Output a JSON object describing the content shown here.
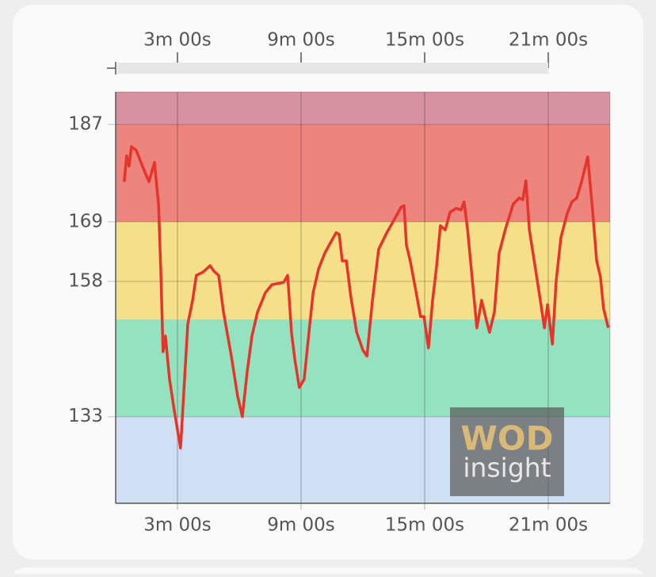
{
  "chart_data": {
    "type": "line",
    "x": [
      25,
      32,
      39,
      46,
      60,
      78,
      97,
      113,
      125,
      132,
      138,
      145,
      157,
      171,
      189,
      198,
      210,
      224,
      235,
      254,
      275,
      286,
      300,
      314,
      337,
      355,
      369,
      383,
      397,
      413,
      436,
      455,
      489,
      501,
      512,
      522,
      535,
      549,
      563,
      575,
      591,
      609,
      628,
      642,
      651,
      660,
      672,
      685,
      702,
      720,
      732,
      748,
      766,
      789,
      812,
      831,
      840,
      847,
      858,
      875,
      888,
      898,
      911,
      923,
      934,
      946,
      960,
      974,
      992,
      1006,
      1015,
      1025,
      1038,
      1052,
      1066,
      1077,
      1089,
      1103,
      1117,
      1135,
      1158,
      1175,
      1186,
      1195,
      1205,
      1221,
      1237,
      1249,
      1258,
      1272,
      1283,
      1297,
      1315,
      1329,
      1343,
      1357,
      1375,
      1389,
      1401,
      1412,
      1421,
      1435
    ],
    "series": [
      {
        "color": "#e5352b",
        "values": [
          176.4,
          181.2,
          179.3,
          182.9,
          182.2,
          179.3,
          176.4,
          180,
          172,
          158.8,
          145,
          147.9,
          139.9,
          134,
          127.2,
          137,
          150.1,
          154.5,
          159.1,
          159.7,
          160.9,
          159.9,
          159.1,
          152.3,
          144.2,
          136.9,
          133,
          141.3,
          147.9,
          152.3,
          155.9,
          157.4,
          157.8,
          159.1,
          148.6,
          143.5,
          138.4,
          139.9,
          148.6,
          155.9,
          160.3,
          163.2,
          165.4,
          167,
          166.7,
          161.8,
          161.8,
          155.2,
          148.6,
          145.3,
          144.2,
          154.5,
          163.9,
          166.9,
          169.5,
          171.7,
          172,
          164.7,
          161.8,
          156,
          151.5,
          151.5,
          145.7,
          154.5,
          160.3,
          168.3,
          167.5,
          170.8,
          171.5,
          171.2,
          172.7,
          167.5,
          158.8,
          149.4,
          154.5,
          151.5,
          148.6,
          152.3,
          163.2,
          167.6,
          172.3,
          173.4,
          173.1,
          176.6,
          167.5,
          161,
          154.5,
          149.4,
          153.7,
          146.4,
          158.1,
          166.1,
          170.5,
          172.7,
          173.4,
          176.4,
          181,
          171.2,
          161.8,
          158.8,
          153,
          149.4
        ]
      }
    ],
    "xlim": [
      0,
      1440
    ],
    "xticks": [
      {
        "value": 180,
        "label": "3m 00s"
      },
      {
        "value": 540,
        "label": "9m 00s"
      },
      {
        "value": 900,
        "label": "15m 00s"
      },
      {
        "value": 1260,
        "label": "21m 00s"
      }
    ],
    "ylim": [
      117,
      193
    ],
    "yticks": [
      133,
      158,
      169,
      187
    ],
    "zones": [
      {
        "from": 187,
        "to": 193,
        "color": "#d692a0"
      },
      {
        "from": 169,
        "to": 187,
        "color": "#ee847e"
      },
      {
        "from": 151,
        "to": 169,
        "color": "#f5df88"
      },
      {
        "from": 133,
        "to": 151,
        "color": "#94e2bf"
      },
      {
        "from": 117,
        "to": 133,
        "color": "#cfe0f5"
      }
    ],
    "watermark": [
      "WOD",
      "insight"
    ]
  }
}
